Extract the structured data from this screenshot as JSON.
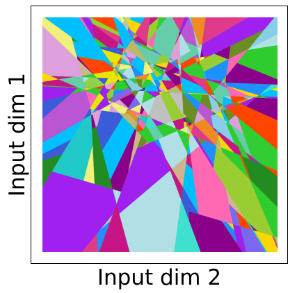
{
  "figure": {
    "xlabel": "Input dim 2",
    "ylabel": "Input dim 1",
    "frame_color": "#000000",
    "background": "#ffffff"
  },
  "plot": {
    "description_type": "linear-region partition (random colored polygons)",
    "palette": [
      "#2ecc2e",
      "#a020f0",
      "#f0f07a",
      "#20c8c8",
      "#e03b8a",
      "#3b5bd9",
      "#f08a24",
      "#8fd14f",
      "#c0c0c0",
      "#6b8e23",
      "#ff69b4",
      "#87ceeb",
      "#d2b48c",
      "#1e90ff",
      "#32cd32",
      "#ba55d3",
      "#ffd700",
      "#ff4500",
      "#40e0d0",
      "#9acd32",
      "#e6e600",
      "#8b008b",
      "#228b22",
      "#dda0dd",
      "#00bfff",
      "#b0e0e6",
      "#66cdaa",
      "#c71585",
      "#bdb76b",
      "#7b68ee"
    ]
  }
}
